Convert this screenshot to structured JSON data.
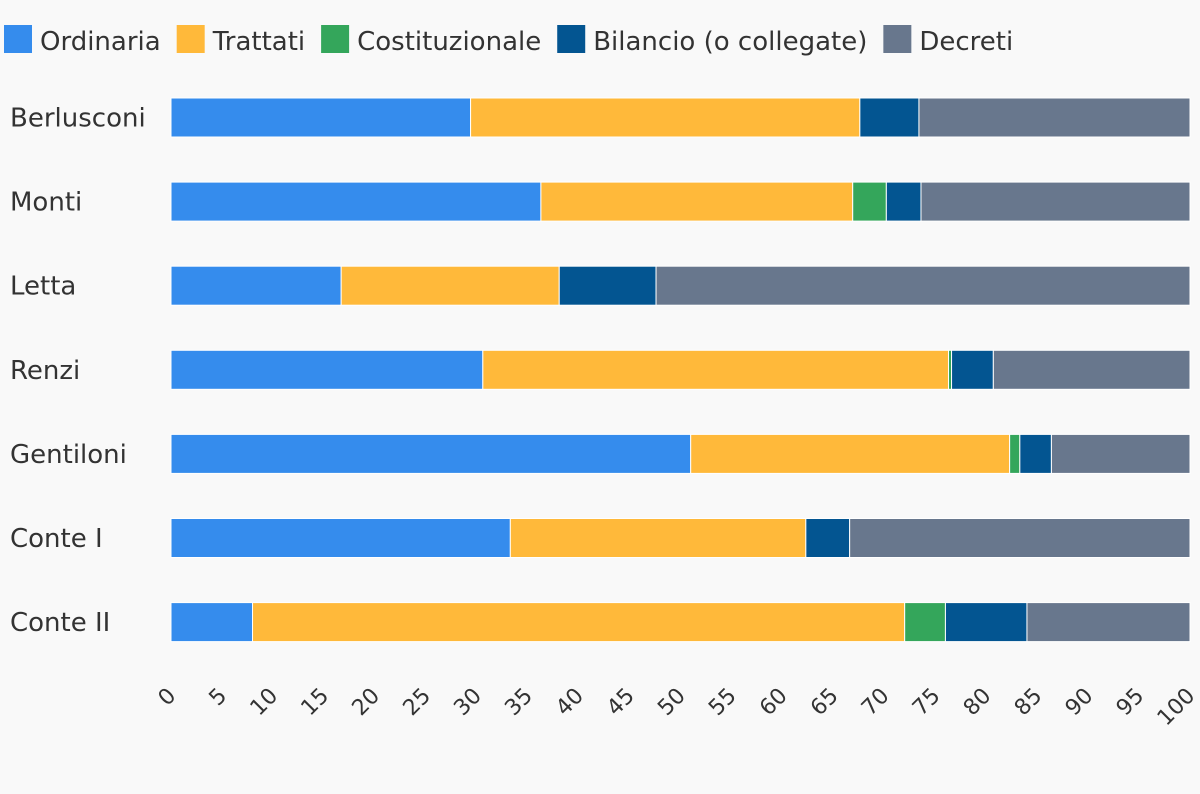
{
  "chart_data": {
    "type": "bar",
    "orientation": "horizontal",
    "stacked": true,
    "title": "",
    "xlabel": "",
    "ylabel": "",
    "xlim": [
      0,
      100
    ],
    "x_ticks": [
      0,
      5,
      10,
      15,
      20,
      25,
      30,
      35,
      40,
      45,
      50,
      55,
      60,
      65,
      70,
      75,
      80,
      85,
      90,
      95,
      100
    ],
    "legend_position": "top-left",
    "grid": false,
    "categories": [
      "Berlusconi",
      "Monti",
      "Letta",
      "Renzi",
      "Gentiloni",
      "Conte I",
      "Conte II"
    ],
    "series": [
      {
        "name": "Ordinaria",
        "color": "#358ced",
        "values": [
          29.4,
          36.3,
          16.7,
          30.6,
          51.0,
          33.3,
          8.0
        ]
      },
      {
        "name": "Trattati",
        "color": "#ffb93a",
        "values": [
          38.2,
          30.6,
          21.4,
          45.7,
          31.3,
          29.0,
          64.0
        ]
      },
      {
        "name": "Costituzionale",
        "color": "#34a65b",
        "values": [
          0,
          3.3,
          0,
          0.3,
          1.0,
          0,
          4.0
        ]
      },
      {
        "name": "Bilancio (o collegate)",
        "color": "#035591",
        "values": [
          5.8,
          3.4,
          9.5,
          4.1,
          3.1,
          4.3,
          8.0
        ]
      },
      {
        "name": "Decreti",
        "color": "#68778d",
        "values": [
          26.6,
          26.4,
          52.4,
          19.3,
          13.6,
          33.4,
          16.0
        ]
      }
    ]
  }
}
